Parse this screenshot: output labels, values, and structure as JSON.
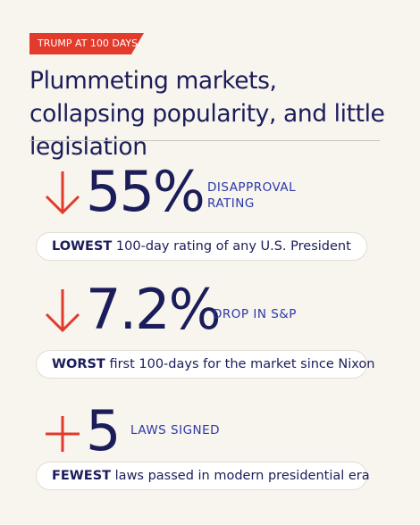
{
  "header": {
    "tag": "TRUMP AT 100 DAYS",
    "title": "Plummeting markets, collapsing popularity, and little legislation"
  },
  "stats": [
    {
      "figure": "55%",
      "label": "DISAPPROVAL RATING",
      "note_bold": "LOWEST",
      "note": "100-day rating of any U.S. President"
    },
    {
      "figure": "7.2%",
      "label": "DROP IN S&P",
      "note_bold": "WORST",
      "note": "first 100-days for the market since Nixon"
    },
    {
      "figure": "5",
      "label": "LAWS SIGNED",
      "note_bold": "FEWEST",
      "note": "laws passed in modern presidential era"
    }
  ]
}
